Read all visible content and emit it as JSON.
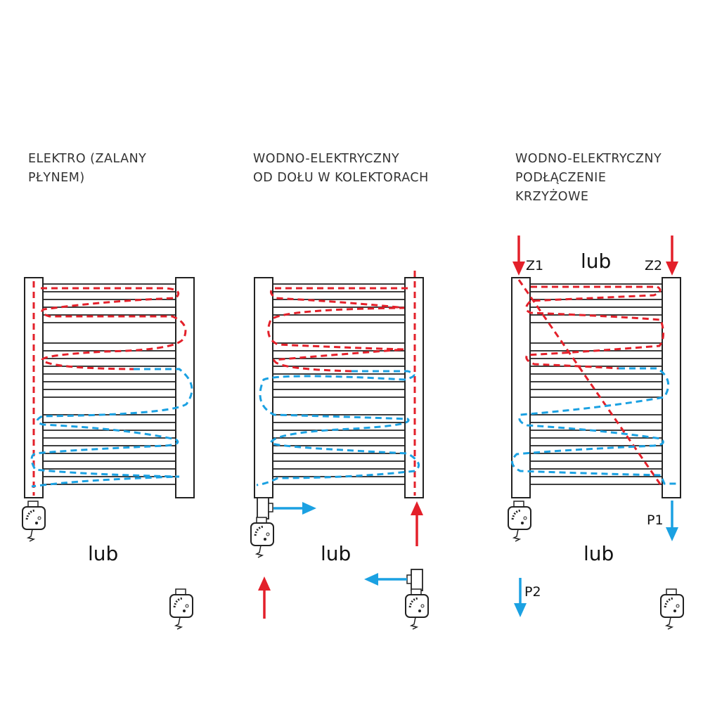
{
  "colors": {
    "supply": "#e3202a",
    "return": "#1ba1e2",
    "outline": "#222222"
  },
  "panels": [
    {
      "title": "ELEKTRO (ZALANY\nPŁYNEM)",
      "or_label": "lub"
    },
    {
      "title": "WODNO-ELEKTRYCZNY\nOD DOŁU W KOLEKTORACH",
      "or_label": "lub"
    },
    {
      "title": "WODNO-ELEKTRYCZNY\nPODŁĄCZENIE\nKRZYŻOWE",
      "or_label": "lub",
      "top_or_label": "lub",
      "labels": {
        "z1": "Z1",
        "z2": "Z2",
        "p1": "P1",
        "p2": "P2"
      }
    }
  ]
}
